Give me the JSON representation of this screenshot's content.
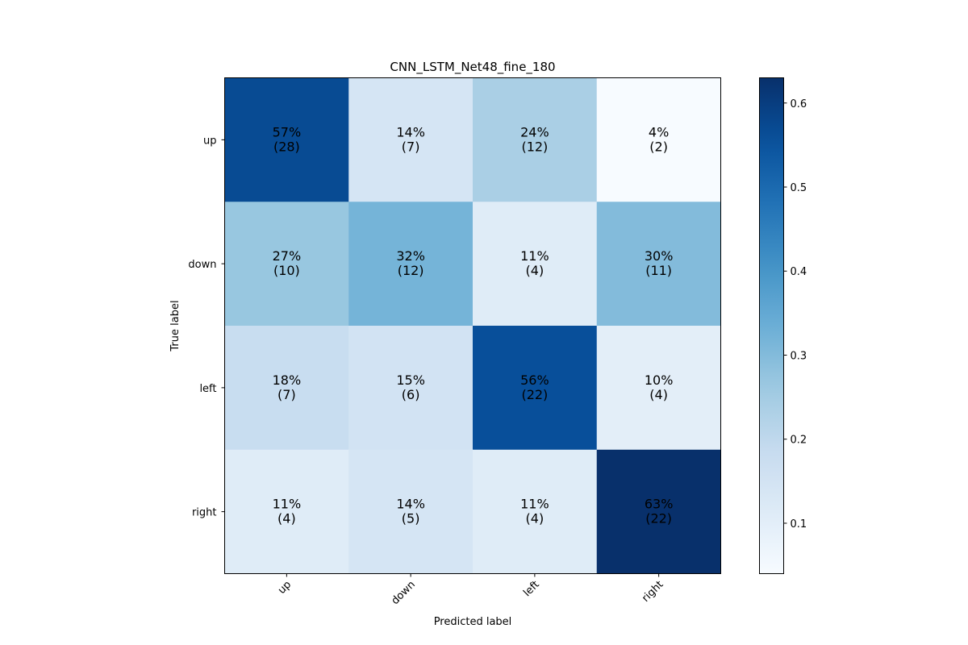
{
  "chart_data": {
    "type": "heatmap",
    "title": "CNN_LSTM_Net48_fine_180",
    "xlabel": "Predicted label",
    "ylabel": "True label",
    "x_categories": [
      "up",
      "down",
      "left",
      "right"
    ],
    "y_categories": [
      "up",
      "down",
      "left",
      "right"
    ],
    "colormap": "Blues",
    "values": [
      [
        0.57,
        0.14,
        0.24,
        0.04
      ],
      [
        0.27,
        0.32,
        0.11,
        0.3
      ],
      [
        0.18,
        0.15,
        0.56,
        0.1
      ],
      [
        0.11,
        0.14,
        0.11,
        0.63
      ]
    ],
    "counts": [
      [
        28,
        7,
        12,
        2
      ],
      [
        10,
        12,
        4,
        11
      ],
      [
        7,
        6,
        22,
        4
      ],
      [
        4,
        5,
        4,
        22
      ]
    ],
    "cell_labels": [
      [
        "57%\n(28)",
        "14%\n(7)",
        "24%\n(12)",
        "4%\n(2)"
      ],
      [
        "27%\n(10)",
        "32%\n(12)",
        "11%\n(4)",
        "30%\n(11)"
      ],
      [
        "18%\n(7)",
        "15%\n(6)",
        "56%\n(22)",
        "10%\n(4)"
      ],
      [
        "11%\n(4)",
        "14%\n(5)",
        "11%\n(4)",
        "63%\n(22)"
      ]
    ],
    "colorbar": {
      "range": [
        0.04,
        0.63
      ],
      "ticks": [
        0.1,
        0.2,
        0.3,
        0.4,
        0.5,
        0.6
      ],
      "tick_labels": [
        "0.1",
        "0.2",
        "0.3",
        "0.4",
        "0.5",
        "0.6"
      ]
    },
    "grid": false
  }
}
